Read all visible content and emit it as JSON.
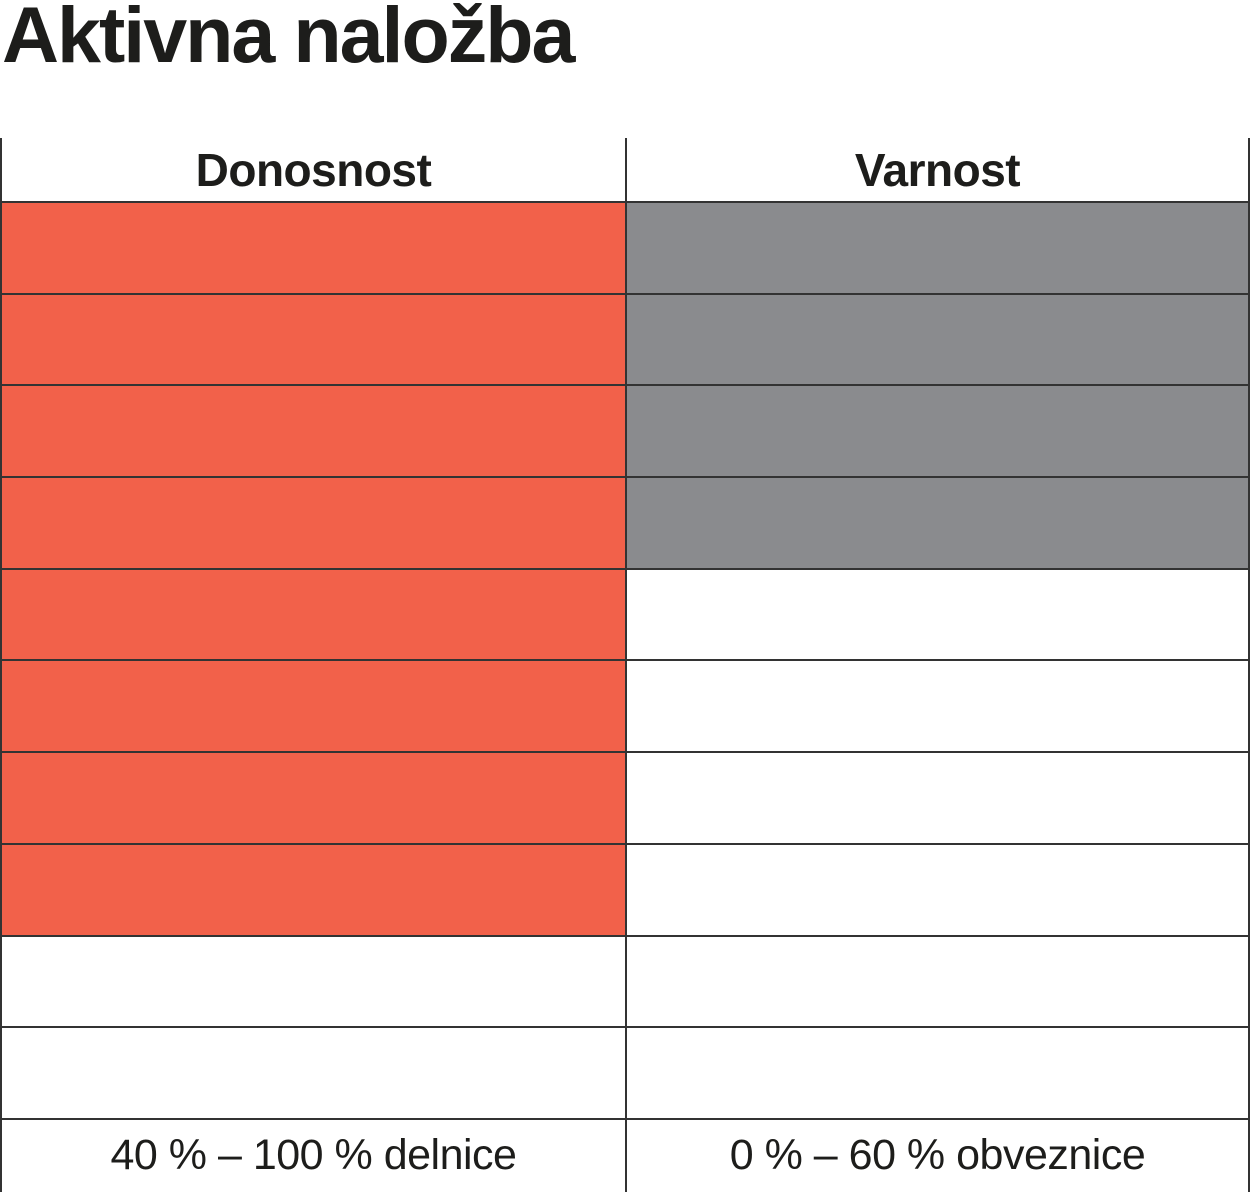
{
  "page": {
    "title": "Aktivna naložba"
  },
  "chart_data": {
    "type": "bar",
    "title": "Aktivna naložba",
    "categories": [
      "Donosnost",
      "Varnost"
    ],
    "values": [
      8,
      4
    ],
    "rows_total": 10,
    "max": 10,
    "fill_direction": "top-down",
    "grid": true,
    "legend_position": "bottom",
    "series": [
      {
        "name": "Donosnost",
        "filled_rows": 8,
        "color": "#f2614a",
        "range_label": "40 % – 100 % delnice"
      },
      {
        "name": "Varnost",
        "filled_rows": 4,
        "color": "#8a8b8e",
        "range_label": "0 % –  60 % obveznice"
      }
    ],
    "colors": {
      "line": "#333333",
      "text": "#1d1d1b",
      "background": "#ffffff"
    }
  }
}
